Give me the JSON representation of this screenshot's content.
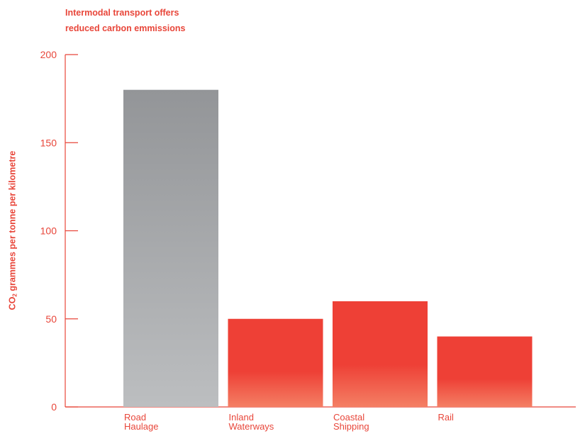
{
  "chart_data": {
    "type": "bar",
    "title_lines": [
      "Intermodal transport offers",
      "reduced carbon emmissions"
    ],
    "ylabel": {
      "main": "CO",
      "subscript": "2",
      "rest": " grammes per tonne per kilometre"
    },
    "xlabel": "",
    "ylim": [
      0,
      200
    ],
    "yticks": [
      0,
      50,
      100,
      150,
      200
    ],
    "categories": [
      [
        "Road",
        "Haulage"
      ],
      [
        "Inland",
        "Waterways"
      ],
      [
        "Coastal",
        "Shipping"
      ],
      [
        "Rail"
      ]
    ],
    "values": [
      180,
      50,
      60,
      40
    ],
    "grid": false,
    "colors": {
      "accent": "#e8463a",
      "road_top": "#939598",
      "road_bottom": "#bcbec0",
      "other_top": "#ee4036",
      "other_bottom": "#f47f64"
    }
  }
}
